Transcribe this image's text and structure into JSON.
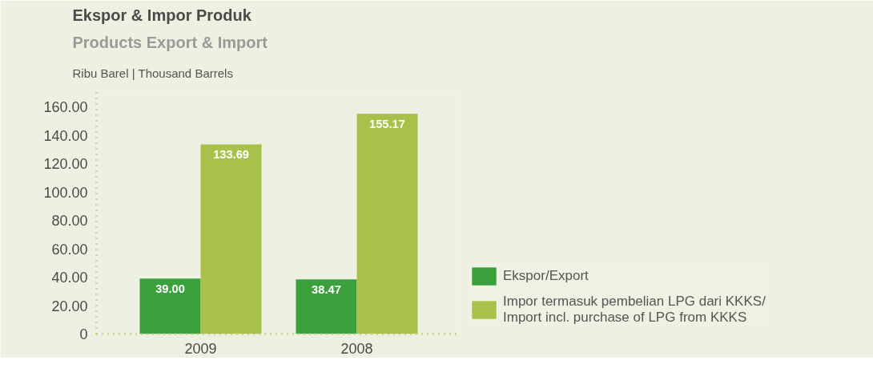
{
  "chart_data": {
    "type": "bar",
    "title": "Ekspor & Impor Produk",
    "subtitle": "Products Export & Import",
    "annotations": [
      "Ribu Barel  |  Thousand Barrels"
    ],
    "categories": [
      "2009",
      "2008"
    ],
    "series": [
      {
        "name": "Ekspor/Export",
        "color": "#3aa03c",
        "values": [
          39.0,
          38.47
        ],
        "value_labels": [
          "39.00",
          "38.47"
        ]
      },
      {
        "name": "Impor termasuk pembelian LPG dari KKKS/\nImport incl. purchase of LPG from KKKS",
        "color": "#a8c14a",
        "values": [
          133.69,
          155.17
        ],
        "value_labels": [
          "133.69",
          "155.17"
        ]
      }
    ],
    "ylim": [
      0,
      172
    ],
    "yticks": [
      0,
      {
        "value": 20,
        "label": "20.00"
      },
      {
        "value": 40,
        "label": "40.00"
      },
      {
        "value": 60,
        "label": "60.00"
      },
      {
        "value": 80,
        "label": "80.00"
      },
      {
        "value": 100,
        "label": "100.00"
      },
      {
        "value": 120,
        "label": "120.00"
      },
      {
        "value": 140,
        "label": "140.00"
      },
      {
        "value": 160,
        "label": "160.00"
      }
    ],
    "grid": false,
    "legend": "bottom right"
  }
}
